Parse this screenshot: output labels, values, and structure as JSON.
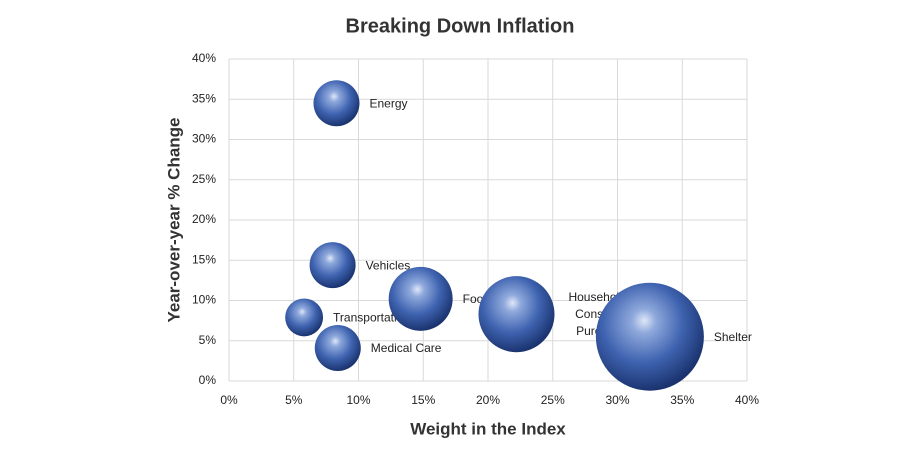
{
  "chart_data": {
    "type": "bubble",
    "title": "Breaking Down Inflation",
    "x_label": "Weight in the Index",
    "y_label": "Year-over-year % Change",
    "color": "#3f63b0",
    "grid": true,
    "xlim": [
      0,
      40
    ],
    "ylim": [
      0,
      40
    ],
    "xticks": [
      {
        "value": 0,
        "label": "0%"
      },
      {
        "value": 5,
        "label": "5%"
      },
      {
        "value": 10,
        "label": "10%"
      },
      {
        "value": 15,
        "label": "15%"
      },
      {
        "value": 20,
        "label": "20%"
      },
      {
        "value": 25,
        "label": "25%"
      },
      {
        "value": 30,
        "label": "30%"
      },
      {
        "value": 35,
        "label": "35%"
      },
      {
        "value": 40,
        "label": "40%"
      }
    ],
    "yticks": [
      {
        "value": 0,
        "label": "0%"
      },
      {
        "value": 5,
        "label": "5%"
      },
      {
        "value": 10,
        "label": "10%"
      },
      {
        "value": 15,
        "label": "15%"
      },
      {
        "value": 20,
        "label": "20%"
      },
      {
        "value": 25,
        "label": "25%"
      },
      {
        "value": 30,
        "label": "30%"
      },
      {
        "value": 35,
        "label": "35%"
      },
      {
        "value": 40,
        "label": "40%"
      }
    ],
    "labels": [
      "Energy",
      "Vehicles",
      "Transportation",
      "Medical Care",
      "Food",
      "Household & Consumer Purchases",
      "Shelter"
    ],
    "x": [
      8.3,
      8.0,
      5.8,
      8.4,
      14.8,
      22.2,
      32.5
    ],
    "y": [
      34.5,
      14.4,
      7.9,
      4.1,
      10.2,
      8.3,
      5.5
    ],
    "sizes": [
      5.9,
      5.9,
      4.0,
      5.9,
      11.4,
      16.1,
      32.5
    ]
  }
}
